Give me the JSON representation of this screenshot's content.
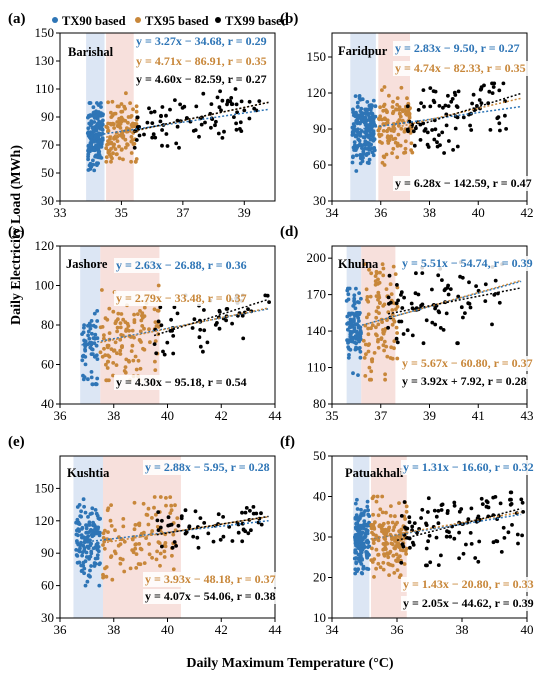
{
  "figure": {
    "xlabel": "Daily Maximum Temperature (°C)",
    "ylabel": "Daily Electricity Load (MWh)"
  },
  "legend": [
    {
      "label": "TX90 based",
      "color": "#2e75b6"
    },
    {
      "label": "TX95 based",
      "color": "#c8873a"
    },
    {
      "label": "TX99 based",
      "color": "#000000"
    }
  ],
  "colors": {
    "tx90": "#2e75b6",
    "tx95": "#c8873a",
    "tx99": "#000000",
    "shade90": "#dce6f4",
    "shade95": "#f7e0dc"
  },
  "chart_data": [
    {
      "panel": "(a)",
      "station": "Barishal",
      "type": "scatter",
      "xlim": [
        33,
        40
      ],
      "xticks": [
        33,
        35,
        37,
        39
      ],
      "ylim": [
        30,
        150
      ],
      "yticks": [
        30,
        50,
        70,
        90,
        110,
        130,
        150
      ],
      "shade90": [
        33.85,
        34.45
      ],
      "shade95": [
        34.5,
        35.4
      ],
      "series": [
        {
          "name": "TX90 based",
          "x_range": [
            33.9,
            34.4
          ],
          "y_range": [
            50,
            100
          ],
          "count": 190,
          "slope": 3.27,
          "intercept": -34.68,
          "r": 0.29,
          "equation": "y = 3.27x − 34.68, r = 0.29"
        },
        {
          "name": "TX95 based",
          "x_range": [
            34.5,
            35.5
          ],
          "y_range": [
            58,
            107
          ],
          "count": 120,
          "slope": 4.71,
          "intercept": -86.91,
          "r": 0.35,
          "equation": "y = 4.71x − 86.91, r = 0.35"
        },
        {
          "name": "TX99 based",
          "x_range": [
            35.4,
            39.5
          ],
          "y_range": [
            68,
            110
          ],
          "count": 90,
          "slope": 4.6,
          "intercept": -82.59,
          "r": 0.27,
          "equation": "y = 4.60x − 82.59, r = 0.27"
        }
      ]
    },
    {
      "panel": "(b)",
      "station": "Faridpur",
      "type": "scatter",
      "xlim": [
        34,
        42
      ],
      "xticks": [
        34,
        36,
        38,
        40,
        42
      ],
      "ylim": [
        30,
        170
      ],
      "yticks": [
        30,
        60,
        90,
        120,
        150
      ],
      "shade90": [
        34.75,
        35.8
      ],
      "shade95": [
        35.9,
        37.2
      ],
      "series": [
        {
          "name": "TX90 based",
          "x_range": [
            34.8,
            35.8
          ],
          "y_range": [
            55,
            120
          ],
          "count": 200,
          "slope": 2.83,
          "intercept": -9.5,
          "r": 0.27,
          "equation": "y = 2.83x − 9.50, r = 0.27"
        },
        {
          "name": "TX95 based",
          "x_range": [
            35.9,
            37.3
          ],
          "y_range": [
            60,
            125
          ],
          "count": 120,
          "slope": 4.74,
          "intercept": -82.33,
          "r": 0.35,
          "equation": "y = 4.74x − 82.33, r = 0.35"
        },
        {
          "name": "TX99 based",
          "x_range": [
            37.1,
            41.3
          ],
          "y_range": [
            65,
            128
          ],
          "count": 90,
          "slope": 6.28,
          "intercept": -142.59,
          "r": 0.47,
          "equation": "y = 6.28x − 142.59, r = 0.47"
        }
      ]
    },
    {
      "panel": "(c)",
      "station": "Jashore",
      "type": "scatter",
      "xlim": [
        36,
        44
      ],
      "xticks": [
        36,
        38,
        40,
        42,
        44
      ],
      "ylim": [
        40,
        120
      ],
      "yticks": [
        40,
        60,
        80,
        100,
        120
      ],
      "shade90": [
        36.75,
        37.5
      ],
      "shade95": [
        37.5,
        39.7
      ],
      "series": [
        {
          "name": "TX90 based",
          "x_range": [
            36.8,
            37.4
          ],
          "y_range": [
            50,
            95
          ],
          "count": 60,
          "slope": 2.63,
          "intercept": -26.88,
          "r": 0.36,
          "equation": "y = 2.63x − 26.88, r = 0.36"
        },
        {
          "name": "TX95 based",
          "x_range": [
            37.5,
            39.7
          ],
          "y_range": [
            52,
            100
          ],
          "count": 120,
          "slope": 2.79,
          "intercept": -33.48,
          "r": 0.37,
          "equation": "y = 2.79x − 33.48, r = 0.37"
        },
        {
          "name": "TX99 based",
          "x_range": [
            39.5,
            43.9
          ],
          "y_range": [
            65,
            95
          ],
          "count": 60,
          "slope": 4.3,
          "intercept": -95.18,
          "r": 0.54,
          "equation": "y = 4.30x − 95.18, r = 0.54"
        }
      ]
    },
    {
      "panel": "(d)",
      "station": "Khulna",
      "type": "scatter",
      "xlim": [
        35,
        43
      ],
      "xticks": [
        35,
        37,
        39,
        41,
        43
      ],
      "ylim": [
        80,
        210
      ],
      "yticks": [
        80,
        110,
        140,
        170,
        200
      ],
      "shade90": [
        35.6,
        36.2
      ],
      "shade95": [
        36.2,
        37.6
      ],
      "series": [
        {
          "name": "TX90 based",
          "x_range": [
            35.6,
            36.2
          ],
          "y_range": [
            100,
            175
          ],
          "count": 110,
          "slope": 5.51,
          "intercept": -54.74,
          "r": 0.39,
          "equation": "y = 5.51x − 54.74, r = 0.39"
        },
        {
          "name": "TX95 based",
          "x_range": [
            36.3,
            37.7
          ],
          "y_range": [
            100,
            195
          ],
          "count": 110,
          "slope": 5.67,
          "intercept": -60.8,
          "r": 0.37,
          "equation": "y = 5.67x − 60.80, r = 0.37"
        },
        {
          "name": "TX99 based",
          "x_range": [
            37.3,
            42.0
          ],
          "y_range": [
            130,
            200
          ],
          "count": 80,
          "slope": 3.92,
          "intercept": 7.92,
          "r": 0.28,
          "equation": "y = 3.92x + 7.92, r = 0.28"
        }
      ]
    },
    {
      "panel": "(e)",
      "station": "Kushtia",
      "type": "scatter",
      "xlim": [
        36,
        44
      ],
      "xticks": [
        36,
        38,
        40,
        42,
        44
      ],
      "ylim": [
        30,
        180
      ],
      "yticks": [
        30,
        60,
        90,
        120,
        150
      ],
      "shade90": [
        36.5,
        37.6
      ],
      "shade95": [
        37.6,
        40.5
      ],
      "series": [
        {
          "name": "TX90 based",
          "x_range": [
            36.6,
            37.5
          ],
          "y_range": [
            60,
            140
          ],
          "count": 140,
          "slope": 2.88,
          "intercept": -5.95,
          "r": 0.28,
          "equation": "y = 2.88x − 5.95, r = 0.28"
        },
        {
          "name": "TX95 based",
          "x_range": [
            37.6,
            40.4
          ],
          "y_range": [
            65,
            142
          ],
          "count": 110,
          "slope": 3.93,
          "intercept": -48.18,
          "r": 0.37,
          "equation": "y = 3.93x − 48.18, r = 0.37"
        },
        {
          "name": "TX99 based",
          "x_range": [
            39.6,
            43.7
          ],
          "y_range": [
            95,
            135
          ],
          "count": 60,
          "slope": 4.07,
          "intercept": -54.06,
          "r": 0.38,
          "equation": "y = 4.07x − 54.06, r = 0.38"
        }
      ]
    },
    {
      "panel": "(f)",
      "station": "Patuakhali",
      "type": "scatter",
      "xlim": [
        34,
        40
      ],
      "xticks": [
        34,
        36,
        38,
        40
      ],
      "ylim": [
        10,
        50
      ],
      "yticks": [
        10,
        20,
        30,
        40,
        50
      ],
      "shade90": [
        34.65,
        35.15
      ],
      "shade95": [
        35.2,
        36.3
      ],
      "series": [
        {
          "name": "TX90 based",
          "x_range": [
            34.7,
            35.15
          ],
          "y_range": [
            21,
            40
          ],
          "count": 150,
          "slope": 1.31,
          "intercept": -16.6,
          "r": 0.32,
          "equation": "y = 1.31x − 16.60, r = 0.32"
        },
        {
          "name": "TX95 based",
          "x_range": [
            35.2,
            36.3
          ],
          "y_range": [
            19,
            40
          ],
          "count": 150,
          "slope": 1.43,
          "intercept": -20.8,
          "r": 0.33,
          "equation": "y = 1.43x − 20.80, r = 0.33"
        },
        {
          "name": "TX99 based",
          "x_range": [
            36.0,
            39.9
          ],
          "y_range": [
            23,
            41
          ],
          "count": 110,
          "slope": 2.05,
          "intercept": -44.62,
          "r": 0.39,
          "equation": "y = 2.05x − 44.62, r = 0.39"
        }
      ]
    }
  ]
}
